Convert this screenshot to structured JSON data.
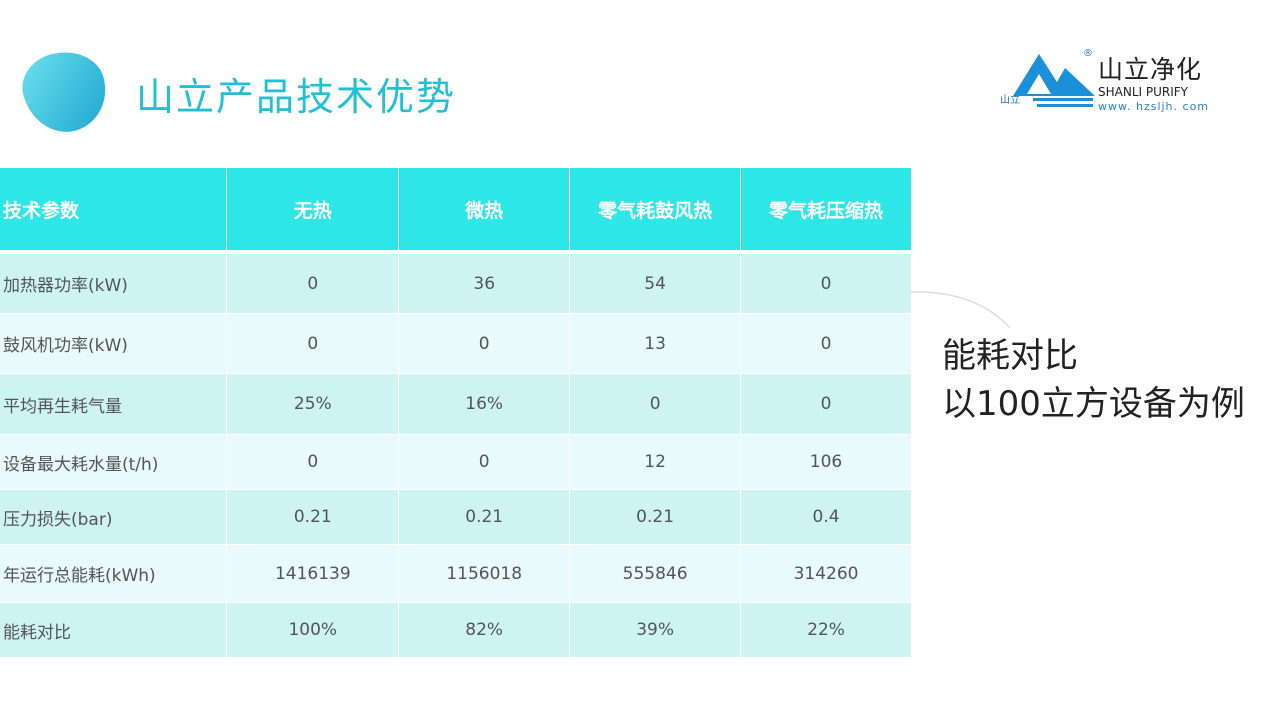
{
  "title": "山立产品技术优势",
  "logo": {
    "name_cn": "山立净化",
    "name_en": "SHANLI PURIFY",
    "url": "www. hzsljh. com",
    "small": "山立",
    "reg": "®"
  },
  "table": {
    "headers": [
      "技术参数",
      "无热",
      "微热",
      "零气耗鼓风热",
      "零气耗压缩热"
    ],
    "rows": [
      [
        "加热器功率(kW)",
        "0",
        "36",
        "54",
        "0"
      ],
      [
        "鼓风机功率(kW)",
        "0",
        "0",
        "13",
        "0"
      ],
      [
        "平均再生耗气量",
        "25%",
        "16%",
        "0",
        "0"
      ],
      [
        "设备最大耗水量(t/h)",
        "0",
        "0",
        "12",
        "106"
      ],
      [
        "压力损失(bar)",
        "0.21",
        "0.21",
        "0.21",
        "0.4"
      ],
      [
        "年运行总能耗(kWh)",
        "1416139",
        "1156018",
        "555846",
        "314260"
      ],
      [
        "能耗对比",
        "100%",
        "82%",
        "39%",
        "22%"
      ]
    ]
  },
  "side": {
    "line1": "能耗对比",
    "line2": "以100立方设备为例"
  },
  "colors": {
    "header": "#2ee6e6",
    "row_odd": "#cdf3f3",
    "row_even": "#e8fafa",
    "title": "#22c0d6"
  }
}
